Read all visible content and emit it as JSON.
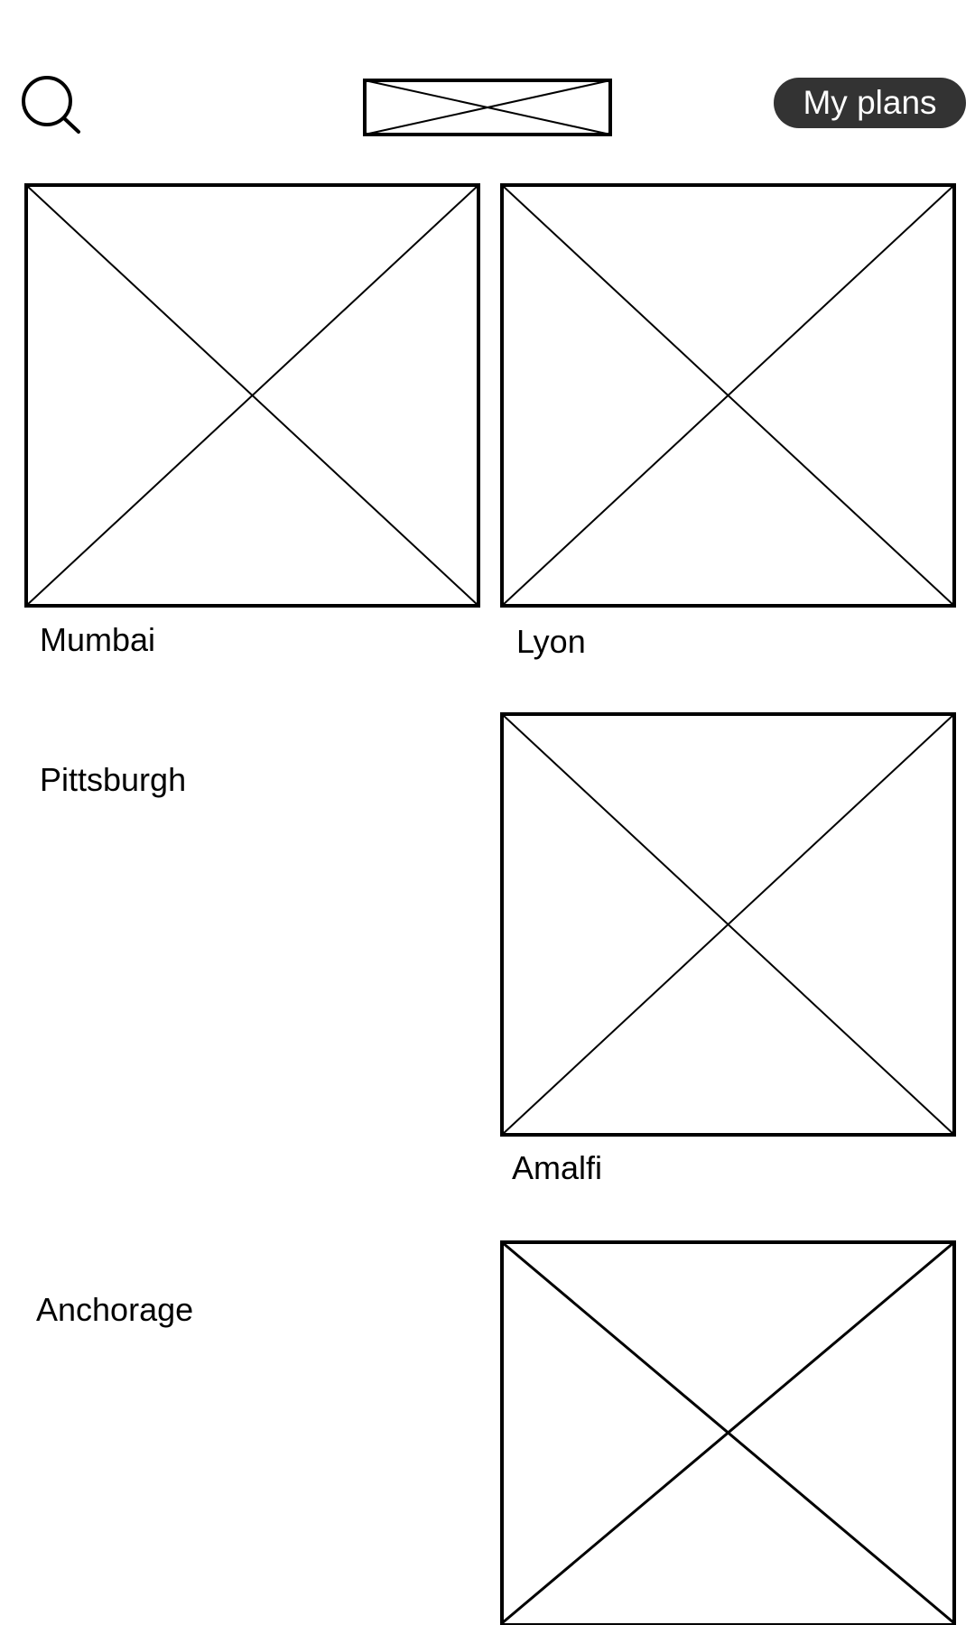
{
  "header": {
    "search_icon": "search-icon",
    "logo_icon": "image-placeholder-icon",
    "plans_button_label": "My plans",
    "plans_button_color": "#333333"
  },
  "destinations": [
    {
      "label": "Mumbai",
      "image_icon": "image-placeholder-icon"
    },
    {
      "label": "Lyon",
      "image_icon": "image-placeholder-icon"
    },
    {
      "label": "Pittsburgh"
    },
    {
      "label": "Amalfi",
      "image_icon": "image-placeholder-icon"
    },
    {
      "label": "Anchorage"
    },
    {
      "image_icon": "image-placeholder-icon"
    }
  ]
}
